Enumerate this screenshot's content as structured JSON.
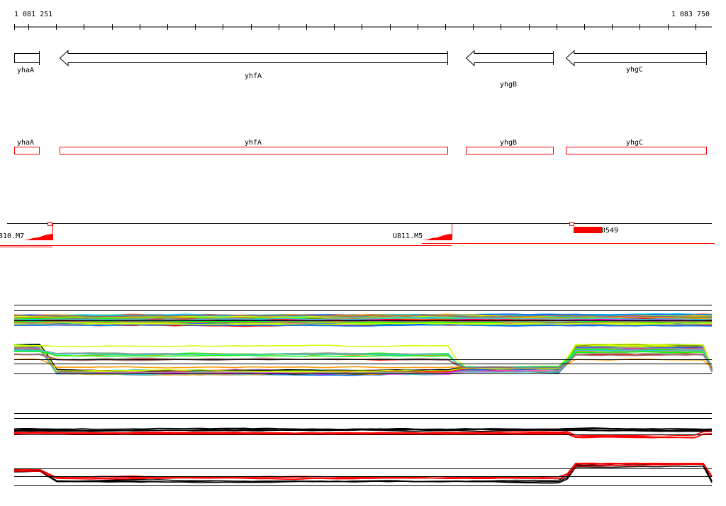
{
  "ruler": {
    "start_label": "1 081 251",
    "end_label": "1 083 750"
  },
  "genes": [
    {
      "name": "yhaA",
      "strand": "none"
    },
    {
      "name": "yhfA",
      "strand": "-"
    },
    {
      "name": "yhgB",
      "strand": "-"
    },
    {
      "name": "yhgC",
      "strand": "-"
    }
  ],
  "features": [
    {
      "label": "310.M7"
    },
    {
      "label": "U811.M5"
    },
    {
      "label": "0549"
    }
  ],
  "colors": {
    "feature": "#ff0000",
    "axis": "#000000",
    "series": [
      "#ff0000",
      "#00ccff",
      "#ff00ff",
      "#0066ff",
      "#ff9900",
      "#ccff00",
      "#00ff00",
      "#999999",
      "#996666",
      "#000000",
      "#33cccc",
      "#ff66ff"
    ]
  }
}
